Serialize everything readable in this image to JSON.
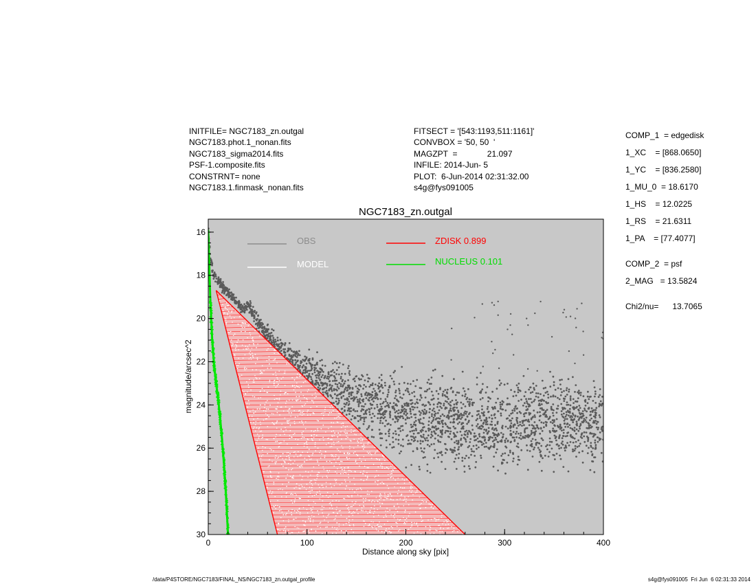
{
  "header_left": [
    "INITFILE= NGC7183_zn.outgal",
    "NGC7183.phot.1_nonan.fits",
    "NGC7183_sigma2014.fits",
    "PSF-1.composite.fits",
    "CONSTRNT= none",
    "NGC7183.1.finmask_nonan.fits"
  ],
  "header_mid": [
    "FITSECT = '[543:1193,511:1161]'",
    "CONVBOX = '50, 50  '",
    "MAGZPT  =             21.097",
    "INFILE: 2014-Jun- 5",
    "PLOT:  6-Jun-2014 02:31:32.00",
    "s4g@fys091005"
  ],
  "params": [
    "COMP_1  = edgedisk",
    "1_XC    = [868.0650]",
    "1_YC    = [836.2580]",
    "1_MU_0  = 18.6170",
    "1_HS    = 12.0225",
    "1_RS    = 21.6311",
    "1_PA    = [77.4077]",
    "COMP_2  = psf",
    "2_MAG   = 13.5824",
    "Chi2/nu=      13.7065"
  ],
  "footer_left": "/data/P4STORE/NGC7183/FINAL_NS/NGC7183_zn.outgal_profile",
  "footer_right": "s4g@fys091005  Fri Jun  6 02:31:33 2014",
  "chart_data": {
    "type": "scatter",
    "title": "NGC7183_zn.outgal",
    "xlabel": "Distance along sky [pix]",
    "ylabel": "magnitude/arcsec^2",
    "xlim": [
      0,
      400
    ],
    "ylim": [
      30,
      15.4
    ],
    "y_inverted": true,
    "x_ticks": [
      "0",
      "100",
      "200",
      "300",
      "400"
    ],
    "y_ticks": [
      "16",
      "18",
      "20",
      "22",
      "24",
      "26",
      "28",
      "30"
    ],
    "background": "#c8c8c8",
    "grid": false,
    "legend": [
      {
        "label": "OBS",
        "color": "#8c8c8c"
      },
      {
        "label": "MODEL",
        "color": "#ffffff"
      },
      {
        "label": "ZDISK  0.899",
        "color": "#ff0000"
      },
      {
        "label": "NUCLEUS  0.101",
        "color": "#00dd00"
      }
    ],
    "series": [
      {
        "name": "OBS",
        "color": "#5a5a5a",
        "x": [
          0,
          2,
          5,
          8,
          12,
          16,
          20,
          25,
          30,
          35,
          40,
          45,
          50,
          60,
          70,
          80,
          90,
          100,
          120,
          140,
          160,
          180,
          200,
          220,
          240,
          260,
          280,
          300,
          320,
          340,
          360,
          380,
          400
        ],
        "y": [
          15.8,
          17.2,
          17.9,
          18.2,
          18.4,
          18.6,
          18.8,
          19.0,
          19.3,
          19.6,
          19.3,
          19.7,
          20.2,
          20.8,
          21.3,
          21.8,
          22.1,
          22.4,
          23.0,
          23.5,
          23.9,
          24.2,
          24.5,
          24.7,
          24.8,
          24.9,
          24.9,
          25.0,
          24.9,
          24.9,
          24.8,
          24.8,
          24.9
        ]
      },
      {
        "name": "ZDISK  0.899",
        "color": "#ff0000",
        "edges": {
          "top": {
            "x": [
              8,
              260
            ],
            "y": [
              18.7,
              30.0
            ]
          },
          "bottom": {
            "x": [
              8,
              70
            ],
            "y": [
              18.7,
              30.0
            ]
          }
        }
      },
      {
        "name": "NUCLEUS  0.101",
        "color": "#00dd00",
        "x": [
          0,
          2,
          4,
          6,
          8,
          10,
          12,
          14,
          16,
          18,
          20
        ],
        "y": [
          15.9,
          19.0,
          21.0,
          22.2,
          23.0,
          23.7,
          24.6,
          25.6,
          26.8,
          28.2,
          30.0
        ]
      }
    ]
  }
}
